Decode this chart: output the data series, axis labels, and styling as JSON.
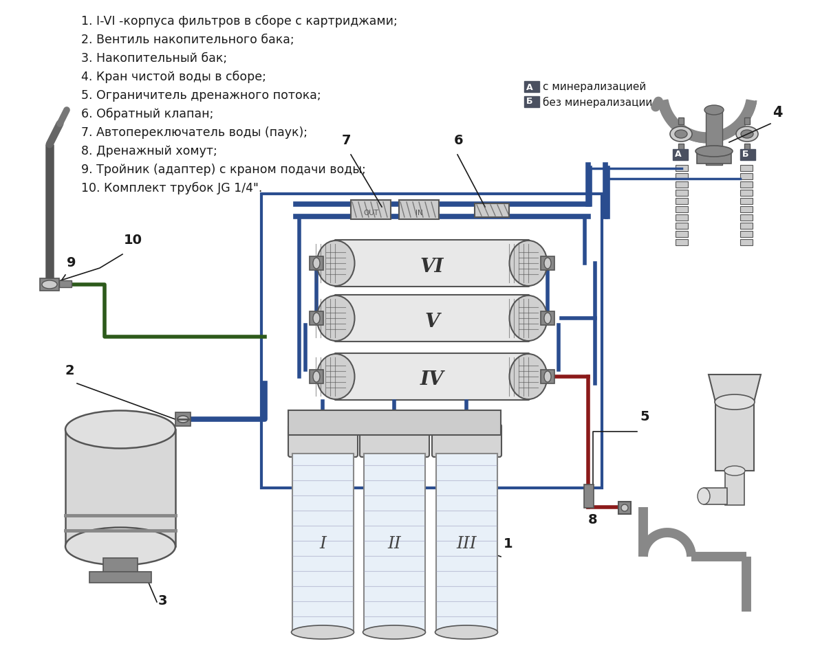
{
  "bg_color": "#ffffff",
  "numbered_list": [
    "I-VI -корпуса фильтров в сборе с картриджами;",
    "Вентиль накопительного бака;",
    "Накопительный бак;",
    "Кран чистой воды в сборе;",
    "Ограничитель дренажного потока;",
    "Обратный клапан;",
    "Автопереключатель воды (паук);",
    "Дренажный хомут;",
    "Тройник (адаптер) с краном подачи воды;",
    "Комплект трубок JG 1/4\"."
  ],
  "blue": "#2a4d8f",
  "blue_light": "#3a6abf",
  "gray_dark": "#555555",
  "gray_med": "#888888",
  "gray_light": "#cccccc",
  "gray_fill": "#d8d8d8",
  "red": "#8b1a1a",
  "green_tube": "#2d5a1b",
  "text_color": "#1a1a1a"
}
